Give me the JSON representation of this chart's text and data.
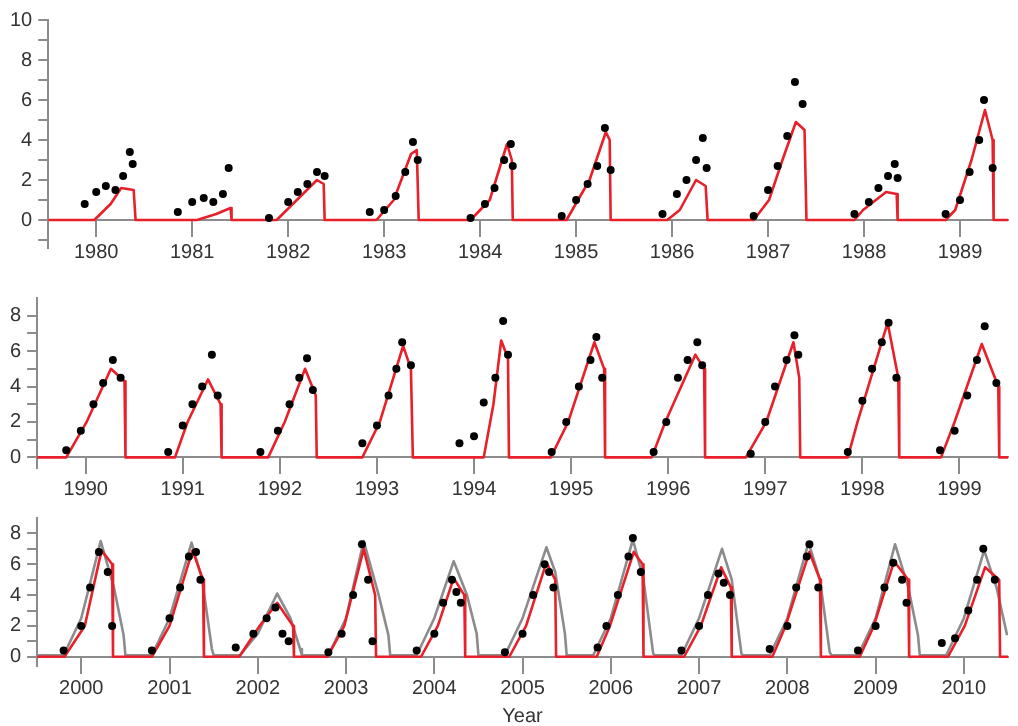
{
  "chart_data": [
    {
      "type": "line",
      "grid": false,
      "legend": false,
      "xlim": [
        1980,
        1990
      ],
      "ylim": [
        -1.4,
        10
      ],
      "xticks": [
        {
          "value": 1980.5,
          "label": "1980"
        },
        {
          "value": 1981.5,
          "label": "1981"
        },
        {
          "value": 1982.5,
          "label": "1982"
        },
        {
          "value": 1983.5,
          "label": "1983"
        },
        {
          "value": 1984.5,
          "label": "1984"
        },
        {
          "value": 1985.5,
          "label": "1985"
        },
        {
          "value": 1986.5,
          "label": "1986"
        },
        {
          "value": 1987.5,
          "label": "1987"
        },
        {
          "value": 1988.5,
          "label": "1988"
        },
        {
          "value": 1989.5,
          "label": "1989"
        }
      ],
      "yticks": [
        {
          "value": -1,
          "label": null
        },
        0,
        {
          "value": 1,
          "label": null
        },
        2,
        {
          "value": 3,
          "label": null
        },
        4,
        {
          "value": 5,
          "label": null
        },
        6,
        {
          "value": 7,
          "label": null
        },
        8,
        {
          "value": 9,
          "label": null
        },
        10
      ],
      "series": [
        {
          "type": "scatter",
          "marker": "circle",
          "color": "#000000",
          "x": [
            1980.38,
            1980.5,
            1980.6,
            1980.7,
            1980.78,
            1980.85,
            1980.88,
            1981.35,
            1981.5,
            1981.62,
            1981.72,
            1981.82,
            1981.88,
            1982.3,
            1982.5,
            1982.6,
            1982.7,
            1982.8,
            1982.88,
            1983.35,
            1983.5,
            1983.62,
            1983.72,
            1983.8,
            1983.85,
            1984.4,
            1984.55,
            1984.65,
            1984.75,
            1984.82,
            1984.84,
            1985.35,
            1985.5,
            1985.62,
            1985.72,
            1985.8,
            1985.86,
            1986.4,
            1986.55,
            1986.65,
            1986.75,
            1986.82,
            1986.86,
            1987.35,
            1987.5,
            1987.6,
            1987.7,
            1987.78,
            1987.86,
            1988.4,
            1988.55,
            1988.65,
            1988.75,
            1988.82,
            1988.85,
            1989.35,
            1989.5,
            1989.6,
            1989.7,
            1989.75,
            1989.84
          ],
          "values": [
            0.8,
            1.4,
            1.7,
            1.5,
            2.2,
            3.4,
            2.8,
            0.4,
            0.9,
            1.1,
            0.9,
            1.3,
            2.6,
            0.1,
            0.9,
            1.4,
            1.8,
            2.4,
            2.2,
            0.4,
            0.5,
            1.2,
            2.4,
            3.9,
            3.0,
            0.1,
            0.8,
            1.6,
            3.0,
            3.8,
            2.7,
            0.2,
            1.0,
            1.8,
            2.7,
            4.6,
            2.5,
            0.3,
            1.3,
            2.0,
            3.0,
            4.1,
            2.6,
            0.2,
            1.5,
            2.7,
            4.2,
            6.9,
            5.8,
            0.3,
            0.9,
            1.6,
            2.2,
            2.8,
            2.1,
            0.3,
            1.0,
            2.4,
            4.0,
            6.0,
            2.6
          ]
        },
        {
          "type": "line",
          "color": "#e8202a",
          "x": [
            1980,
            1980.48,
            1980.65,
            1980.76,
            1980.89,
            1980.91,
            1981.55,
            1981.75,
            1981.9,
            1981.91,
            1982.38,
            1982.59,
            1982.8,
            1982.87,
            1982.88,
            1983.42,
            1983.6,
            1983.78,
            1983.84,
            1983.86,
            1984.4,
            1984.6,
            1984.78,
            1984.83,
            1984.84,
            1985.4,
            1985.64,
            1985.81,
            1985.85,
            1985.86,
            1986.45,
            1986.58,
            1986.75,
            1986.85,
            1986.87,
            1987.35,
            1987.51,
            1987.65,
            1987.79,
            1987.88,
            1987.9,
            1988.4,
            1988.49,
            1988.73,
            1988.84,
            1988.85,
            1989.35,
            1989.45,
            1989.62,
            1989.76,
            1989.84,
            1989.85,
            1990
          ],
          "values": [
            0,
            0,
            0.8,
            1.6,
            1.5,
            0,
            0,
            0.3,
            0.6,
            0,
            0,
            1,
            2,
            1.8,
            0,
            0,
            1,
            3.3,
            3.5,
            0,
            0,
            1,
            3.8,
            3,
            0,
            0,
            2,
            4.4,
            4,
            0,
            0,
            0.5,
            2,
            1.7,
            0,
            0,
            1,
            3,
            4.9,
            4.5,
            0,
            0,
            0.5,
            1.4,
            1.3,
            0,
            0,
            0.5,
            3,
            5.5,
            4,
            0,
            0
          ]
        }
      ]
    },
    {
      "type": "line",
      "grid": false,
      "legend": false,
      "xlim": [
        1990,
        2000
      ],
      "ylim": [
        -0.6,
        9
      ],
      "xticks": [
        {
          "value": 1990.5,
          "label": "1990"
        },
        {
          "value": 1991.5,
          "label": "1991"
        },
        {
          "value": 1992.5,
          "label": "1992"
        },
        {
          "value": 1993.5,
          "label": "1993"
        },
        {
          "value": 1994.5,
          "label": "1994"
        },
        {
          "value": 1995.5,
          "label": "1995"
        },
        {
          "value": 1996.5,
          "label": "1996"
        },
        {
          "value": 1997.5,
          "label": "1997"
        },
        {
          "value": 1998.5,
          "label": "1998"
        },
        {
          "value": 1999.5,
          "label": "1999"
        }
      ],
      "yticks": [
        0,
        {
          "value": 1,
          "label": null
        },
        2,
        {
          "value": 3,
          "label": null
        },
        4,
        {
          "value": 5,
          "label": null
        },
        6,
        {
          "value": 7,
          "label": null
        },
        8
      ],
      "series": [
        {
          "type": "scatter",
          "marker": "circle",
          "color": "#000000",
          "x": [
            1990.3,
            1990.45,
            1990.58,
            1990.68,
            1990.78,
            1990.86,
            1991.35,
            1991.5,
            1991.6,
            1991.7,
            1991.8,
            1991.86,
            1992.3,
            1992.48,
            1992.6,
            1992.7,
            1992.78,
            1992.84,
            1993.35,
            1993.5,
            1993.62,
            1993.7,
            1993.76,
            1993.85,
            1994.35,
            1994.5,
            1994.6,
            1994.72,
            1994.8,
            1994.85,
            1995.3,
            1995.45,
            1995.58,
            1995.7,
            1995.76,
            1995.82,
            1996.35,
            1996.48,
            1996.6,
            1996.7,
            1996.8,
            1996.85,
            1997.35,
            1997.5,
            1997.6,
            1997.72,
            1997.8,
            1997.84,
            1998.35,
            1998.5,
            1998.6,
            1998.7,
            1998.77,
            1998.85,
            1999.3,
            1999.45,
            1999.58,
            1999.68,
            1999.76,
            1999.88
          ],
          "values": [
            0.4,
            1.5,
            3,
            4.2,
            5.5,
            4.5,
            0.3,
            1.8,
            3,
            4,
            5.8,
            3.5,
            0.3,
            1.5,
            3,
            4.5,
            5.6,
            3.8,
            0.8,
            1.8,
            3.5,
            5,
            6.5,
            5.2,
            0.8,
            1.2,
            3.1,
            4.5,
            7.7,
            5.8,
            0.3,
            2,
            4,
            5.5,
            6.8,
            4.5,
            0.3,
            2,
            4.5,
            5.5,
            6.5,
            5.2,
            0.2,
            2,
            4,
            5.5,
            6.9,
            5.8,
            0.3,
            3.2,
            5,
            6.5,
            7.6,
            4.5,
            0.4,
            1.5,
            3.5,
            5.5,
            7.4,
            4.2
          ]
        },
        {
          "type": "line",
          "color": "#e8202a",
          "x": [
            1990,
            1990.3,
            1990.51,
            1990.76,
            1990.9,
            1990.91,
            1991.42,
            1991.55,
            1991.76,
            1991.89,
            1991.9,
            1992.38,
            1992.55,
            1992.76,
            1992.87,
            1992.88,
            1993.35,
            1993.53,
            1993.77,
            1993.85,
            1993.87,
            1994.6,
            1994.7,
            1994.78,
            1994.85,
            1994.86,
            1995.29,
            1995.47,
            1995.74,
            1995.84,
            1995.85,
            1996.33,
            1996.47,
            1996.78,
            1996.87,
            1996.88,
            1997.3,
            1997.51,
            1997.79,
            1997.85,
            1997.86,
            1998.35,
            1998.45,
            1998.76,
            1998.87,
            1998.88,
            1999.31,
            1999.45,
            1999.73,
            1999.9,
            1999.91,
            2000
          ],
          "values": [
            0,
            0,
            2,
            5,
            4.3,
            0,
            0,
            2,
            4.4,
            3,
            0,
            0,
            2,
            5,
            3.5,
            0,
            0,
            2,
            6.3,
            5,
            0,
            0,
            3,
            6.6,
            5.6,
            0,
            0,
            2,
            6.5,
            5,
            0,
            0,
            2,
            5.8,
            5,
            0,
            0,
            2,
            6.5,
            4.5,
            0,
            0,
            2,
            7.6,
            4.5,
            0,
            0,
            2,
            6.4,
            4,
            0,
            0
          ]
        }
      ]
    },
    {
      "type": "line",
      "grid": false,
      "legend": false,
      "xlabel": "Year",
      "xlim": [
        2000,
        2011
      ],
      "ylim": [
        -0.6,
        9
      ],
      "xticks": [
        {
          "value": 2000.5,
          "label": "2000"
        },
        {
          "value": 2001.5,
          "label": "2001"
        },
        {
          "value": 2002.5,
          "label": "2002"
        },
        {
          "value": 2003.5,
          "label": "2003"
        },
        {
          "value": 2004.5,
          "label": "2004"
        },
        {
          "value": 2005.5,
          "label": "2005"
        },
        {
          "value": 2006.5,
          "label": "2006"
        },
        {
          "value": 2007.5,
          "label": "2007"
        },
        {
          "value": 2008.5,
          "label": "2008"
        },
        {
          "value": 2009.5,
          "label": "2009"
        },
        {
          "value": 2010.5,
          "label": "2010"
        }
      ],
      "yticks": [
        0,
        {
          "value": 1,
          "label": null
        },
        2,
        {
          "value": 3,
          "label": null
        },
        4,
        {
          "value": 5,
          "label": null
        },
        6,
        {
          "value": 7,
          "label": null
        },
        8
      ],
      "series": [
        {
          "type": "scatter",
          "marker": "circle",
          "color": "#000000",
          "x": [
            2000.3,
            2000.5,
            2000.6,
            2000.7,
            2000.8,
            2000.85,
            2001.3,
            2001.5,
            2001.62,
            2001.72,
            2001.8,
            2001.85,
            2002.25,
            2002.45,
            2002.6,
            2002.7,
            2002.78,
            2002.85,
            2003.3,
            2003.45,
            2003.58,
            2003.68,
            2003.75,
            2003.8,
            2004.3,
            2004.5,
            2004.6,
            2004.7,
            2004.75,
            2004.8,
            2005.3,
            2005.5,
            2005.62,
            2005.75,
            2005.8,
            2005.85,
            2006.35,
            2006.45,
            2006.58,
            2006.7,
            2006.75,
            2006.84,
            2007.3,
            2007.5,
            2007.6,
            2007.72,
            2007.78,
            2007.85,
            2008.3,
            2008.5,
            2008.6,
            2008.72,
            2008.75,
            2008.85,
            2009.3,
            2009.5,
            2009.6,
            2009.7,
            2009.8,
            2009.85,
            2010.25,
            2010.4,
            2010.55,
            2010.65,
            2010.72,
            2010.85
          ],
          "values": [
            0.4,
            2,
            4.5,
            6.8,
            5.5,
            2,
            0.4,
            2.5,
            4.5,
            6.5,
            6.8,
            5,
            0.6,
            1.5,
            2.5,
            3.2,
            1.5,
            1,
            0.3,
            1.5,
            4,
            7.3,
            5,
            1,
            0.4,
            1.5,
            3.5,
            5,
            4.2,
            3.5,
            0.3,
            1.5,
            4,
            6,
            5.5,
            4.5,
            0.6,
            2,
            4,
            6.5,
            7.7,
            5.5,
            0.4,
            2,
            4,
            5.4,
            4.8,
            4,
            0.5,
            2,
            4.5,
            6.5,
            7.3,
            4.5,
            0.4,
            2,
            4.5,
            6.1,
            5,
            3.5,
            0.9,
            1.2,
            3,
            5,
            7,
            5
          ]
        },
        {
          "type": "line",
          "color": "#e8202a",
          "x": [
            2000,
            2000.31,
            2000.54,
            2000.73,
            2000.85,
            2000.86,
            2001.3,
            2001.5,
            2001.76,
            2001.88,
            2001.89,
            2002.29,
            2002.52,
            2002.72,
            2002.9,
            2002.91,
            2003.29,
            2003.48,
            2003.7,
            2003.83,
            2003.84,
            2004.35,
            2004.54,
            2004.72,
            2004.84,
            2004.85,
            2005.35,
            2005.54,
            2005.77,
            2005.87,
            2005.88,
            2006.34,
            2006.49,
            2006.76,
            2006.86,
            2006.87,
            2007.33,
            2007.52,
            2007.75,
            2007.86,
            2007.87,
            2008.33,
            2008.48,
            2008.75,
            2008.87,
            2008.88,
            2009.32,
            2009.48,
            2009.71,
            2009.87,
            2009.88,
            2010.32,
            2010.51,
            2010.74,
            2010.9,
            2010.91,
            2011
          ],
          "values": [
            0,
            0,
            2,
            6.9,
            6,
            0,
            0,
            2,
            6.9,
            5,
            0,
            0,
            2,
            3.5,
            2,
            0,
            0,
            2,
            7,
            4,
            0,
            0,
            2,
            5.1,
            4,
            0,
            0,
            2,
            6.1,
            5,
            0,
            0,
            2,
            6.8,
            6,
            0,
            0,
            2,
            5.8,
            4.5,
            0,
            0,
            2,
            6.8,
            5,
            0,
            0,
            2,
            6.2,
            5,
            0,
            0,
            2,
            5.8,
            5,
            0,
            0
          ]
        },
        {
          "type": "line",
          "color": "#8c8c8c",
          "x": [
            2000,
            2000.3,
            2000.5,
            2000.72,
            2000.87,
            2000.98,
            2001,
            2001.3,
            2001.5,
            2001.75,
            2001.87,
            2001.98,
            2002,
            2002.3,
            2002.5,
            2002.72,
            2002.87,
            2002.98,
            2003,
            2003.3,
            2003.5,
            2003.7,
            2003.87,
            2003.98,
            2004,
            2004.3,
            2004.5,
            2004.72,
            2004.87,
            2004.98,
            2005,
            2005.3,
            2005.5,
            2005.77,
            2005.87,
            2005.98,
            2006,
            2006.3,
            2006.5,
            2006.75,
            2006.87,
            2006.98,
            2007,
            2007.3,
            2007.5,
            2007.76,
            2007.87,
            2007.98,
            2008,
            2008.3,
            2008.5,
            2008.74,
            2008.87,
            2008.98,
            2009,
            2009.3,
            2009.5,
            2009.72,
            2009.87,
            2009.98,
            2010,
            2010.3,
            2010.5,
            2010.73,
            2010.87,
            2010.99
          ],
          "values": [
            0.1,
            0.1,
            2.5,
            7.5,
            4.5,
            1.4,
            0.1,
            0.1,
            2.5,
            7.4,
            5,
            0.5,
            0.1,
            0.1,
            1.5,
            4.1,
            2.5,
            0.5,
            0.1,
            0.1,
            2.5,
            7.5,
            4,
            1.4,
            0.1,
            0.1,
            2.5,
            6.2,
            4,
            1.5,
            0.1,
            0.1,
            2.5,
            7.1,
            5.5,
            1.5,
            0.1,
            0.1,
            2.5,
            7.6,
            5,
            0.2,
            0.1,
            0.1,
            2.5,
            7,
            5,
            0.2,
            0.1,
            0.1,
            2.5,
            7.4,
            5,
            0.3,
            0.1,
            0.1,
            2.5,
            7.3,
            4.5,
            1.4,
            0.1,
            0.1,
            2.5,
            6.9,
            4.5,
            1.4
          ]
        }
      ]
    }
  ]
}
